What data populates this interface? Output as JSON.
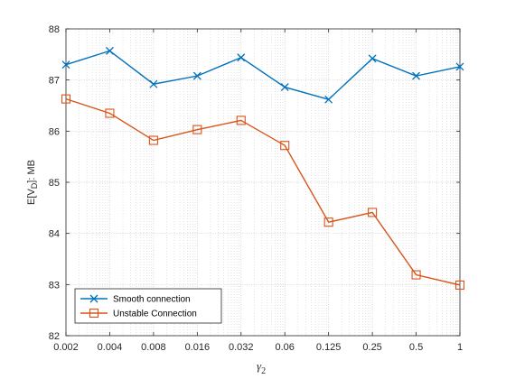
{
  "chart_data": {
    "type": "line",
    "categories": [
      "0.002",
      "0.004",
      "0.008",
      "0.016",
      "0.032",
      "0.06",
      "0.125",
      "0.25",
      "0.5",
      "1"
    ],
    "series": [
      {
        "name": "Smooth connection",
        "values": [
          87.3,
          87.57,
          86.92,
          87.08,
          87.44,
          86.86,
          86.62,
          87.42,
          87.08,
          87.26
        ],
        "color": "#0072BD",
        "marker": "x"
      },
      {
        "name": "Unstable Connection",
        "values": [
          86.63,
          86.35,
          85.82,
          86.03,
          86.21,
          85.72,
          84.22,
          84.41,
          83.19,
          82.99
        ],
        "color": "#D95319",
        "marker": "square"
      }
    ],
    "xlabel": "γ2",
    "ylabel": "E[VD]: MB",
    "ylim": [
      82,
      88
    ],
    "yticks": [
      "82",
      "83",
      "84",
      "85",
      "86",
      "87",
      "88"
    ],
    "grid": true,
    "legend_position": "bottom-left"
  }
}
